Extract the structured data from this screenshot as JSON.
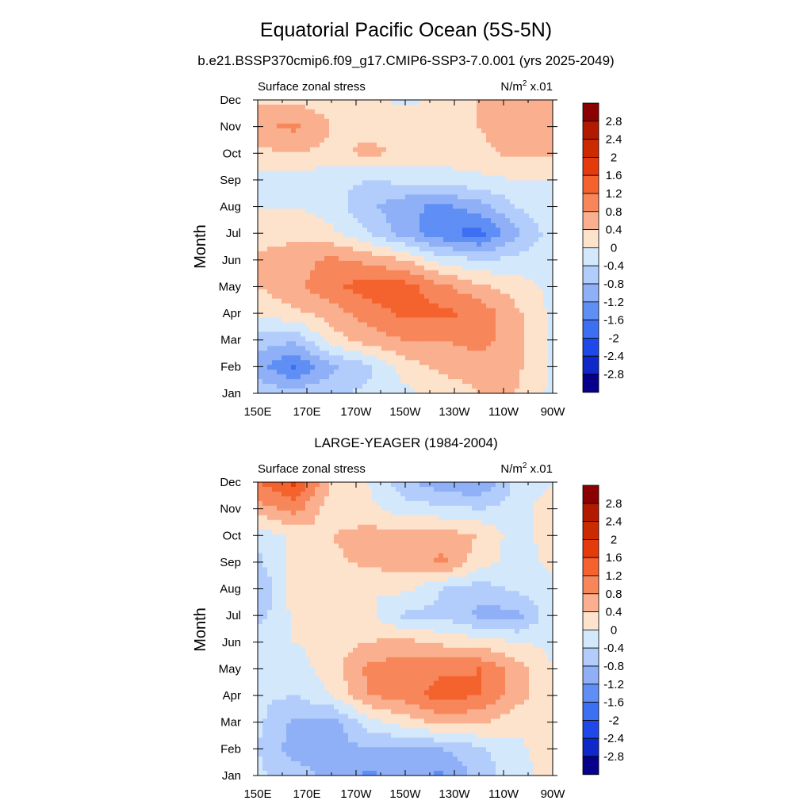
{
  "figure": {
    "title": "Equatorial Pacific Ocean (5S-5N)"
  },
  "chart_data": [
    {
      "type": "heatmap",
      "title": "b.e21.BSSP370cmip6.f09_g17.CMIP6-SSP3-7.0.001 (yrs 2025-2049)",
      "left_label": "Surface zonal stress",
      "unit_main": "N/m",
      "unit_sup": "2",
      "unit_tail": " x.01",
      "ylabel": "Month",
      "x_ticks": [
        "150E",
        "170E",
        "170W",
        "150W",
        "130W",
        "110W",
        "90W"
      ],
      "y_ticks": [
        "Jan",
        "Feb",
        "Mar",
        "Apr",
        "May",
        "Jun",
        "Jul",
        "Aug",
        "Sep",
        "Oct",
        "Nov",
        "Dec"
      ],
      "xlim_lon": [
        150,
        270
      ],
      "grid_lon": [
        150,
        165,
        180,
        195,
        210,
        225,
        240,
        255,
        270
      ],
      "grid_month": [
        "Jan",
        "Feb",
        "Mar",
        "Apr",
        "May",
        "Jun",
        "Jul",
        "Aug",
        "Sep",
        "Oct",
        "Nov",
        "Dec"
      ],
      "values": [
        [
          -0.6,
          -0.6,
          -0.5,
          -0.3,
          -0.1,
          0.2,
          0.4,
          0.4,
          -0.1
        ],
        [
          -1.0,
          -1.7,
          -0.9,
          -0.5,
          0.2,
          0.5,
          0.5,
          0.5,
          -0.1
        ],
        [
          -0.6,
          -0.7,
          0.2,
          0.6,
          0.8,
          0.8,
          1.0,
          0.6,
          -0.1
        ],
        [
          0.1,
          0.3,
          0.6,
          1.0,
          1.3,
          1.3,
          1.1,
          0.5,
          -0.1
        ],
        [
          0.4,
          0.7,
          1.1,
          1.4,
          1.4,
          0.9,
          0.5,
          0.2,
          -0.1
        ],
        [
          0.5,
          0.6,
          0.9,
          0.7,
          0.4,
          -0.2,
          -0.4,
          -0.3,
          -0.1
        ],
        [
          0.2,
          0.3,
          0.1,
          -0.4,
          -1.0,
          -1.5,
          -1.8,
          -0.9,
          -0.2
        ],
        [
          0.0,
          0.0,
          -0.2,
          -0.7,
          -1.1,
          -1.3,
          -1.0,
          -0.4,
          -0.1
        ],
        [
          -0.1,
          -0.2,
          -0.3,
          -0.4,
          -0.3,
          -0.2,
          -0.1,
          0.0,
          0.0
        ],
        [
          0.3,
          0.4,
          0.3,
          0.5,
          0.3,
          0.2,
          0.3,
          0.5,
          0.5
        ],
        [
          0.7,
          0.9,
          0.4,
          0.3,
          0.3,
          0.2,
          0.4,
          0.6,
          0.6
        ],
        [
          0.3,
          0.3,
          0.2,
          0.1,
          -0.1,
          0.1,
          0.4,
          0.5,
          0.5
        ]
      ]
    },
    {
      "type": "heatmap",
      "title": "LARGE-YEAGER (1984-2004)",
      "left_label": "Surface zonal stress",
      "unit_main": "N/m",
      "unit_sup": "2",
      "unit_tail": " x.01",
      "ylabel": "Month",
      "x_ticks": [
        "150E",
        "170E",
        "170W",
        "150W",
        "130W",
        "110W",
        "90W"
      ],
      "y_ticks": [
        "Jan",
        "Feb",
        "Mar",
        "Apr",
        "May",
        "Jun",
        "Jul",
        "Aug",
        "Sep",
        "Oct",
        "Nov",
        "Dec"
      ],
      "xlim_lon": [
        150,
        270
      ],
      "grid_lon": [
        150,
        165,
        180,
        195,
        210,
        225,
        240,
        255,
        270
      ],
      "grid_month": [
        "Jan",
        "Feb",
        "Mar",
        "Apr",
        "May",
        "Jun",
        "Jul",
        "Aug",
        "Sep",
        "Oct",
        "Nov",
        "Dec"
      ],
      "values": [
        [
          -0.3,
          -0.6,
          -0.9,
          -1.3,
          -1.0,
          -1.3,
          -0.6,
          -0.2,
          0.2
        ],
        [
          -0.4,
          -1.0,
          -1.0,
          -0.8,
          -0.9,
          -0.8,
          -0.5,
          -0.1,
          0.2
        ],
        [
          -0.3,
          -0.9,
          -1.0,
          -0.2,
          0.2,
          0.5,
          0.5,
          0.1,
          0.1
        ],
        [
          -0.3,
          -0.4,
          0.0,
          0.8,
          1.0,
          1.4,
          1.2,
          0.6,
          0.1
        ],
        [
          -0.1,
          -0.2,
          0.2,
          0.9,
          1.1,
          1.1,
          1.2,
          0.6,
          0.0
        ],
        [
          -0.1,
          0.0,
          0.2,
          0.4,
          0.5,
          0.3,
          0.2,
          0.0,
          -0.1
        ],
        [
          -0.6,
          0.1,
          0.2,
          0.1,
          -0.5,
          -0.5,
          -0.9,
          -1.0,
          -0.1
        ],
        [
          -0.8,
          0.2,
          0.3,
          0.0,
          0.1,
          -0.4,
          -0.6,
          -0.3,
          -0.1
        ],
        [
          -0.5,
          0.2,
          0.3,
          0.5,
          0.6,
          0.9,
          0.2,
          -0.2,
          0.1
        ],
        [
          -0.3,
          0.1,
          0.4,
          0.6,
          0.5,
          0.6,
          0.4,
          -0.2,
          0.2
        ],
        [
          0.6,
          1.0,
          0.1,
          0.1,
          -0.2,
          -0.3,
          -0.4,
          -0.3,
          0.4
        ],
        [
          1.2,
          1.7,
          0.4,
          0.0,
          -0.7,
          -1.1,
          -1.2,
          -0.3,
          -0.1
        ]
      ]
    }
  ],
  "colorbar": {
    "levels": [
      2.8,
      2.4,
      2,
      1.6,
      1.2,
      0.8,
      0.4,
      0,
      -0.4,
      -0.8,
      -1.2,
      -1.6,
      -2,
      -2.4,
      -2.8
    ],
    "labels": [
      "2.8",
      "2.4",
      "2",
      "1.6",
      "1.2",
      "0.8",
      "0.4",
      "0",
      "-0.4",
      "-0.8",
      "-1.2",
      "-1.6",
      "-2",
      "-2.4",
      "-2.8"
    ],
    "colors": [
      "#8b0000",
      "#b21a00",
      "#cc2a00",
      "#e53b0c",
      "#f4622e",
      "#f8865b",
      "#fab08e",
      "#fde2cc",
      "#d4e8fb",
      "#b2cdfb",
      "#8fb0f7",
      "#5f8ef5",
      "#3d6ff3",
      "#1e48e8",
      "#0f28c8",
      "#06008a"
    ]
  }
}
